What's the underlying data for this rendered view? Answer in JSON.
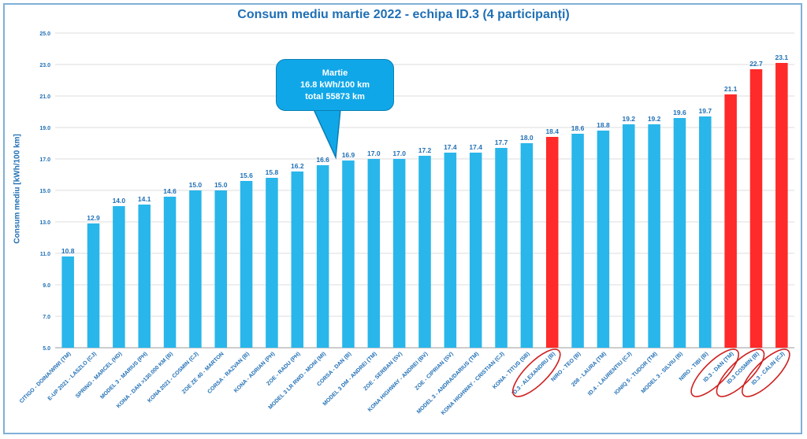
{
  "chart_data": {
    "type": "bar",
    "title": "Consum mediu martie 2022 - echipa ID.3 (4 participanți)",
    "ylabel": "Consum mediu [kWh/100 km]",
    "xlabel": "",
    "ylim": [
      5,
      25
    ],
    "yticks": [
      "5.0",
      "7.0",
      "9.0",
      "11.0",
      "13.0",
      "15.0",
      "17.0",
      "19.0",
      "21.0",
      "23.0",
      "25.0"
    ],
    "grid": true,
    "categories": [
      "CITIGO - DOINA/WIWI (TM)",
      "E-UP 2021 - LASZLO (CJ)",
      "SPRING - MARCEL (HD)",
      "MODEL 3 - MARIUS (PH)",
      "KONA - DAN >130.000 KM (B)",
      "KONA 2021 - COSMIN (CJ)",
      "ZOE ZE 40 - MARTON",
      "CORSA - RAZVAN (B)",
      "KONA - ADRIAN (PH)",
      "ZOE - RADU (PH)",
      "MODEL 3 LR RWD - MONI (MI)",
      "CORSA - DAN (B)",
      "MODEL 3 DM - ANDREI (TM)",
      "ZOE - SERBAN (SV)",
      "KONA HIGHWAY - ANDREI (BV)",
      "ZOE - CIPRIAN (SV)",
      "MODEL 3 - ANDRA/DARIUS (TM)",
      "KONA HIGHWAY - CRISTIAN (CJ)",
      "KONA - TITUS (SB)",
      "ID.3 - ALEXANDRU (B)",
      "NIRO - TEO (B)",
      "208 - LAURA (TM)",
      "ID.4 - LAURENTIU (CJ)",
      "IONIQ 5 - TUDOR (TM)",
      "MODEL 3 - SILVIU (B)",
      "NIRO - TIBI (B)",
      "ID.3 - DAN (TM)",
      "ID.3 COSMIN (B)",
      "ID.3 - CALIN (CJ)"
    ],
    "values": [
      10.8,
      12.9,
      14.0,
      14.1,
      14.6,
      15.0,
      15.0,
      15.6,
      15.8,
      16.2,
      16.6,
      16.9,
      17.0,
      17.0,
      17.2,
      17.4,
      17.4,
      17.7,
      18.0,
      18.4,
      18.6,
      18.8,
      19.2,
      19.2,
      19.6,
      19.7,
      21.1,
      22.7,
      23.1
    ],
    "labels": [
      "10.8",
      "12.9",
      "14.0",
      "14.1",
      "14.6",
      "15.0",
      "15.0",
      "15.6",
      "15.8",
      "16.2",
      "16.6",
      "16.9",
      "17.0",
      "17.0",
      "17.2",
      "17.4",
      "17.4",
      "17.7",
      "18.0",
      "18.4",
      "18.6",
      "18.8",
      "19.2",
      "19.2",
      "19.6",
      "19.7",
      "21.1",
      "22.7",
      "23.1"
    ],
    "highlight": [
      false,
      false,
      false,
      false,
      false,
      false,
      false,
      false,
      false,
      false,
      false,
      false,
      false,
      false,
      false,
      false,
      false,
      false,
      false,
      true,
      false,
      false,
      false,
      false,
      false,
      false,
      true,
      true,
      true
    ],
    "circled": [
      false,
      false,
      false,
      false,
      false,
      false,
      false,
      false,
      false,
      false,
      false,
      false,
      false,
      false,
      false,
      false,
      false,
      false,
      false,
      true,
      false,
      false,
      false,
      false,
      false,
      false,
      true,
      true,
      true
    ],
    "colors": {
      "bar": "#29b6ea",
      "highlight": "#ff2a2a",
      "label": "#1f6fb5",
      "grid": "#d0d0d0",
      "ellipse": "#d02020"
    },
    "annotation": {
      "lines": [
        "Martie",
        "16.8 kWh/100 km",
        "total  55873 km"
      ],
      "points_to": "CORSA - DAN (B)"
    }
  }
}
